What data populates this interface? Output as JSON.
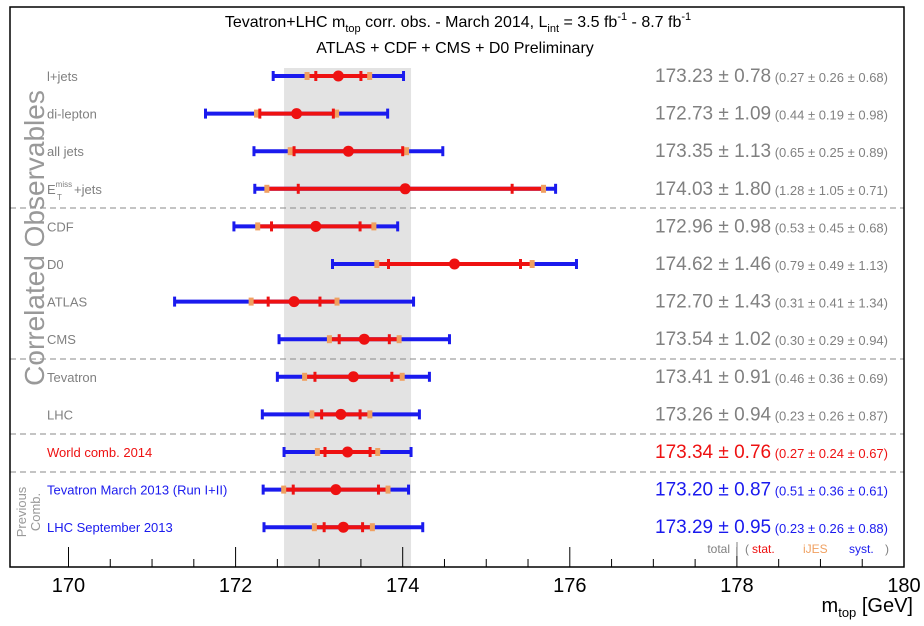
{
  "chart_data": {
    "type": "scatter",
    "title_line1": {
      "pre": "Tevatron+LHC m",
      "sub1": "top",
      "mid": " corr. obs. - March 2014,  L",
      "sub2": "int",
      "post1": " = 3.5 fb",
      "sup1": "-1",
      "post2": " - 8.7 fb",
      "sup2": "-1"
    },
    "title_line2": "ATLAS + CDF + CMS + D0 Preliminary",
    "side_label": "Correlated Observables",
    "previous_label_1": "Previous",
    "previous_label_2": "Comb.",
    "xlabel": {
      "main": "m",
      "sub": "top",
      "unit": " [GeV]"
    },
    "xlim": [
      169.3,
      180
    ],
    "x_ticks": [
      170,
      172,
      174,
      176,
      178,
      180
    ],
    "world_band": [
      172.58,
      174.1
    ],
    "pm": "±",
    "entries": [
      {
        "label": "l+jets",
        "value": 173.23,
        "total": 0.78,
        "stat": 0.27,
        "ijes": 0.26,
        "syst": 0.68,
        "value_text": "173.23",
        "total_text": "0.78",
        "breakdown": [
          "0.27",
          "0.26",
          "0.68"
        ],
        "color": "gray"
      },
      {
        "label": "di-lepton",
        "value": 172.73,
        "total": 1.09,
        "stat": 0.44,
        "ijes": 0.19,
        "syst": 0.98,
        "value_text": "172.73",
        "total_text": "1.09",
        "breakdown": [
          "0.44",
          "0.19",
          "0.98"
        ],
        "color": "gray"
      },
      {
        "label": "all jets",
        "value": 173.35,
        "total": 1.13,
        "stat": 0.65,
        "ijes": 0.25,
        "syst": 0.89,
        "value_text": "173.35",
        "total_text": "1.13",
        "breakdown": [
          "0.65",
          "0.25",
          "0.89"
        ],
        "color": "gray"
      },
      {
        "label": "E",
        "label_sup": "miss",
        "label_sub": "T",
        "label_tail": "+jets",
        "value": 174.03,
        "total": 1.8,
        "stat": 1.28,
        "ijes": 1.05,
        "syst": 0.71,
        "value_text": "174.03",
        "total_text": "1.80",
        "breakdown": [
          "1.28",
          "1.05",
          "0.71"
        ],
        "color": "gray"
      },
      {
        "label": "CDF",
        "value": 172.96,
        "total": 0.98,
        "stat": 0.53,
        "ijes": 0.45,
        "syst": 0.68,
        "value_text": "172.96",
        "total_text": "0.98",
        "breakdown": [
          "0.53",
          "0.45",
          "0.68"
        ],
        "color": "gray"
      },
      {
        "label": "D0",
        "value": 174.62,
        "total": 1.46,
        "stat": 0.79,
        "ijes": 0.49,
        "syst": 1.13,
        "value_text": "174.62",
        "total_text": "1.46",
        "breakdown": [
          "0.79",
          "0.49",
          "1.13"
        ],
        "color": "gray"
      },
      {
        "label": "ATLAS",
        "value": 172.7,
        "total": 1.43,
        "stat": 0.31,
        "ijes": 0.41,
        "syst": 1.34,
        "value_text": "172.70",
        "total_text": "1.43",
        "breakdown": [
          "0.31",
          "0.41",
          "1.34"
        ],
        "color": "gray"
      },
      {
        "label": "CMS",
        "value": 173.54,
        "total": 1.02,
        "stat": 0.3,
        "ijes": 0.29,
        "syst": 0.94,
        "value_text": "173.54",
        "total_text": "1.02",
        "breakdown": [
          "0.30",
          "0.29",
          "0.94"
        ],
        "color": "gray"
      },
      {
        "label": "Tevatron",
        "value": 173.41,
        "total": 0.91,
        "stat": 0.46,
        "ijes": 0.36,
        "syst": 0.69,
        "value_text": "173.41",
        "total_text": "0.91",
        "breakdown": [
          "0.46",
          "0.36",
          "0.69"
        ],
        "color": "gray"
      },
      {
        "label": "LHC",
        "value": 173.26,
        "total": 0.94,
        "stat": 0.23,
        "ijes": 0.26,
        "syst": 0.87,
        "value_text": "173.26",
        "total_text": "0.94",
        "breakdown": [
          "0.23",
          "0.26",
          "0.87"
        ],
        "color": "gray"
      },
      {
        "label": "World comb. 2014",
        "value": 173.34,
        "total": 0.76,
        "stat": 0.27,
        "ijes": 0.24,
        "syst": 0.67,
        "value_text": "173.34",
        "total_text": "0.76",
        "breakdown": [
          "0.27",
          "0.24",
          "0.67"
        ],
        "color": "red"
      },
      {
        "label": "Tevatron March 2013 (Run I+II)",
        "value": 173.2,
        "total": 0.87,
        "stat": 0.51,
        "ijes": 0.36,
        "syst": 0.61,
        "value_text": "173.20",
        "total_text": "0.87",
        "breakdown": [
          "0.51",
          "0.36",
          "0.61"
        ],
        "color": "blue"
      },
      {
        "label": "LHC September 2013",
        "value": 173.29,
        "total": 0.95,
        "stat": 0.23,
        "ijes": 0.26,
        "syst": 0.88,
        "value_text": "173.29",
        "total_text": "0.95",
        "breakdown": [
          "0.23",
          "0.26",
          "0.88"
        ],
        "color": "blue"
      }
    ],
    "legend": {
      "total": "total",
      "open": "(",
      "stat": "stat.",
      "ijes": "iJES",
      "syst": "syst.",
      "close": ")"
    },
    "colors": {
      "total_bar": "#1a1aee",
      "stat_bar": "#ee1111",
      "ijes": "#f0a060",
      "marker": "#ee1111",
      "label_gray": "#808080",
      "red": "#ee1111",
      "blue": "#1a1aee",
      "band": "#e3e3e3"
    }
  }
}
